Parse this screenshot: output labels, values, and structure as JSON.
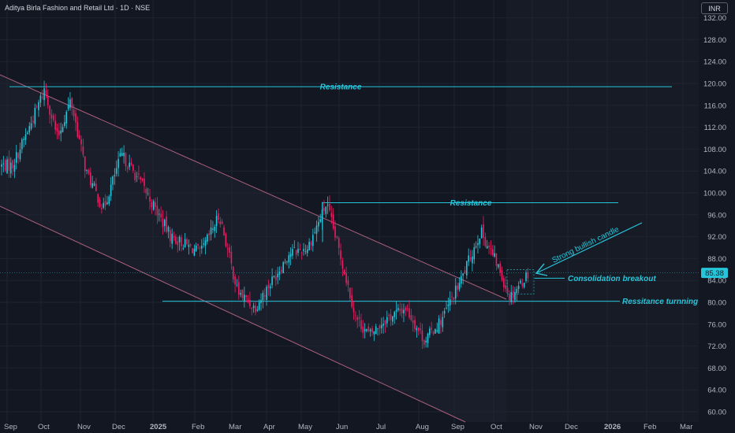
{
  "header": {
    "title": "Aditya Birla Fashion and Retail Ltd · 1D · NSE",
    "currency_label": "INR"
  },
  "colors": {
    "background": "#131722",
    "up": "#26c6da",
    "down": "#e91e63",
    "annotation": "#26c6da",
    "channel": "#e0789a",
    "grid": "#1f2431",
    "axis_text": "#b2b5be"
  },
  "chart_data": {
    "type": "candlestick",
    "symbol": "Aditya Birla Fashion and Retail Ltd",
    "interval": "1D",
    "exchange": "NSE",
    "ylim": [
      59,
      134
    ],
    "y_ticks": [
      60,
      64,
      68,
      72,
      76,
      80,
      84,
      88,
      92,
      96,
      100,
      104,
      108,
      112,
      116,
      120,
      124,
      128,
      132
    ],
    "x_ticks": [
      "Sep",
      "Oct",
      "Nov",
      "Dec",
      "2025",
      "Feb",
      "Mar",
      "Apr",
      "May",
      "Jun",
      "Jul",
      "Aug",
      "Sep",
      "Oct",
      "Nov",
      "Dec",
      "2026",
      "Feb",
      "Mar"
    ],
    "last_price": "85.38",
    "price_path": [
      {
        "month": "Sep",
        "price": 105
      },
      {
        "month": "Sep",
        "price": 112
      },
      {
        "month": "Oct",
        "price": 119
      },
      {
        "month": "Oct",
        "price": 110
      },
      {
        "month": "Oct",
        "price": 117
      },
      {
        "month": "Nov",
        "price": 104
      },
      {
        "month": "Nov",
        "price": 97
      },
      {
        "month": "Dec",
        "price": 107
      },
      {
        "month": "Dec",
        "price": 102
      },
      {
        "month": "2025",
        "price": 92
      },
      {
        "month": "Feb",
        "price": 89
      },
      {
        "month": "Feb",
        "price": 96
      },
      {
        "month": "Mar",
        "price": 82
      },
      {
        "month": "Mar",
        "price": 79
      },
      {
        "month": "Apr",
        "price": 84
      },
      {
        "month": "Apr",
        "price": 89
      },
      {
        "month": "May",
        "price": 90
      },
      {
        "month": "May",
        "price": 98
      },
      {
        "month": "Jun",
        "price": 87
      },
      {
        "month": "Jun",
        "price": 77
      },
      {
        "month": "Jun",
        "price": 74
      },
      {
        "month": "Jul",
        "price": 77
      },
      {
        "month": "Jul",
        "price": 79
      },
      {
        "month": "Aug",
        "price": 73
      },
      {
        "month": "Aug",
        "price": 77
      },
      {
        "month": "Sep",
        "price": 84
      },
      {
        "month": "Sep",
        "price": 93
      },
      {
        "month": "Oct",
        "price": 87
      },
      {
        "month": "Oct",
        "price": 81
      },
      {
        "month": "Oct",
        "price": 84
      },
      {
        "month": "Nov",
        "price": 85.38
      }
    ],
    "horizontal_levels": [
      {
        "label": "Resistance",
        "price": 119.4
      },
      {
        "label": "Resistance",
        "price": 98.2
      },
      {
        "label": "Consolidation breakout",
        "price": 84.4
      },
      {
        "label": "Ressitance turnning",
        "price": 80.2
      }
    ],
    "channel_lines": [
      {
        "from": {
          "month": "Sep",
          "price": 122
        },
        "to": {
          "month": "Oct",
          "price": 84
        }
      },
      {
        "from": {
          "month": "Sep",
          "price": 97
        },
        "to": {
          "month": "Oct",
          "price": 58
        }
      }
    ],
    "annotations": [
      "Resistance",
      "Resistance",
      "Strong bullish candle",
      "Consolidation breakout",
      "Ressitance turnning"
    ]
  }
}
